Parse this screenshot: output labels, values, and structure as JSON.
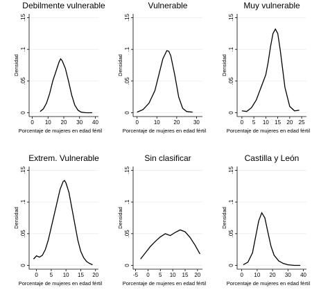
{
  "chart_data": [
    {
      "type": "line",
      "title": "Debilmente vulnerable",
      "xlabel": "Porcentaje de mujeres en edad fértil",
      "ylabel": "Densidad",
      "color": "#000000",
      "grid": true,
      "x": [
        5,
        7,
        9,
        11,
        13,
        15,
        17,
        18,
        19,
        21,
        23,
        25,
        27,
        29,
        31,
        34,
        38
      ],
      "values": [
        0.002,
        0.006,
        0.015,
        0.03,
        0.05,
        0.065,
        0.08,
        0.085,
        0.082,
        0.07,
        0.05,
        0.028,
        0.012,
        0.004,
        0.001,
        0,
        0
      ],
      "xlim": [
        -2,
        42
      ],
      "xticks": [
        0,
        10,
        20,
        30,
        40
      ],
      "ylim": [
        -0.006,
        0.156
      ],
      "yticks": [
        0,
        {
          "value": 0.05,
          "label": ".05"
        },
        {
          "value": 0.1,
          "label": ".1"
        },
        {
          "value": 0.15,
          "label": ".15"
        }
      ]
    },
    {
      "type": "line",
      "title": "Vulnerable",
      "xlabel": "Porcentaje de mujeres en edad fértil",
      "ylabel": "Densidad",
      "color": "#000000",
      "grid": true,
      "x": [
        0,
        3,
        6,
        9,
        11,
        13,
        15,
        16,
        17,
        19,
        21,
        23,
        25,
        28
      ],
      "values": [
        0.001,
        0.005,
        0.015,
        0.035,
        0.06,
        0.085,
        0.098,
        0.097,
        0.09,
        0.06,
        0.025,
        0.007,
        0.002,
        0.001
      ],
      "xlim": [
        -2,
        33
      ],
      "xticks": [
        0,
        10,
        20,
        30
      ],
      "ylim": [
        -0.006,
        0.156
      ],
      "yticks": [
        0,
        {
          "value": 0.05,
          "label": ".05"
        },
        {
          "value": 0.1,
          "label": ".1"
        },
        {
          "value": 0.15,
          "label": ".15"
        }
      ]
    },
    {
      "type": "line",
      "title": "Muy vulnerable",
      "xlabel": "Porcentaje de mujeres en edad fértil",
      "ylabel": "Densidad",
      "color": "#000000",
      "grid": true,
      "x": [
        0,
        2,
        4,
        6,
        8,
        9,
        10,
        11,
        12,
        13,
        14,
        15,
        16,
        17,
        18,
        20,
        22,
        24
      ],
      "values": [
        0.003,
        0.002,
        0.008,
        0.02,
        0.04,
        0.05,
        0.06,
        0.08,
        0.105,
        0.125,
        0.132,
        0.125,
        0.1,
        0.07,
        0.04,
        0.01,
        0.003,
        0.004
      ],
      "xlim": [
        -2,
        27
      ],
      "xticks": [
        0,
        5,
        10,
        15,
        20,
        25
      ],
      "ylim": [
        -0.006,
        0.156
      ],
      "yticks": [
        0,
        {
          "value": 0.05,
          "label": ".05"
        },
        {
          "value": 0.1,
          "label": ".1"
        },
        {
          "value": 0.15,
          "label": ".15"
        }
      ]
    },
    {
      "type": "line",
      "title": "Extrem. Vulnerable",
      "xlabel": "Porcentaje de mujeres en edad fértil",
      "ylabel": "Densidad",
      "color": "#000000",
      "grid": true,
      "x": [
        -1,
        0,
        1,
        2,
        3,
        4,
        5,
        6,
        7,
        8,
        9,
        9.5,
        10,
        11,
        12,
        13,
        14,
        15,
        16,
        17,
        18,
        19
      ],
      "values": [
        0.01,
        0.015,
        0.013,
        0.016,
        0.025,
        0.04,
        0.06,
        0.08,
        0.1,
        0.12,
        0.132,
        0.134,
        0.13,
        0.115,
        0.09,
        0.065,
        0.04,
        0.022,
        0.012,
        0.006,
        0.003,
        0.001
      ],
      "xlim": [
        -2.5,
        21
      ],
      "xticks": [
        0,
        5,
        10,
        15,
        20
      ],
      "ylim": [
        -0.006,
        0.156
      ],
      "yticks": [
        0,
        {
          "value": 0.05,
          "label": ".05"
        },
        {
          "value": 0.1,
          "label": ".1"
        },
        {
          "value": 0.15,
          "label": ".15"
        }
      ]
    },
    {
      "type": "line",
      "title": "Sin clasificar",
      "xlabel": "Porcentaje de mujeres en edad fértil",
      "ylabel": "Densidad",
      "color": "#000000",
      "grid": true,
      "x": [
        -3,
        -1,
        1,
        3,
        5,
        7,
        9,
        11,
        13,
        15,
        17,
        19,
        21
      ],
      "values": [
        0.01,
        0.02,
        0.03,
        0.038,
        0.045,
        0.05,
        0.047,
        0.052,
        0.056,
        0.053,
        0.044,
        0.032,
        0.018
      ],
      "xlim": [
        -6,
        22
      ],
      "xticks": [
        -5,
        0,
        5,
        10,
        15,
        20
      ],
      "ylim": [
        -0.006,
        0.156
      ],
      "yticks": [
        0,
        {
          "value": 0.05,
          "label": ".05"
        },
        {
          "value": 0.1,
          "label": ".1"
        },
        {
          "value": 0.15,
          "label": ".15"
        }
      ]
    },
    {
      "type": "line",
      "title": "Castilla y León",
      "xlabel": "Porcentaje de mujeres en edad fértil",
      "ylabel": "Densidad",
      "color": "#000000",
      "grid": true,
      "x": [
        1,
        4,
        7,
        9,
        11,
        13,
        15,
        17,
        19,
        21,
        24,
        27,
        30,
        34,
        38
      ],
      "values": [
        0.001,
        0.005,
        0.02,
        0.045,
        0.07,
        0.083,
        0.075,
        0.052,
        0.03,
        0.016,
        0.007,
        0.003,
        0.001,
        0,
        0
      ],
      "xlim": [
        -3,
        42
      ],
      "xticks": [
        0,
        10,
        20,
        30,
        40
      ],
      "ylim": [
        -0.006,
        0.156
      ],
      "yticks": [
        0,
        {
          "value": 0.05,
          "label": ".05"
        },
        {
          "value": 0.1,
          "label": ".1"
        },
        {
          "value": 0.15,
          "label": ".15"
        }
      ]
    }
  ]
}
